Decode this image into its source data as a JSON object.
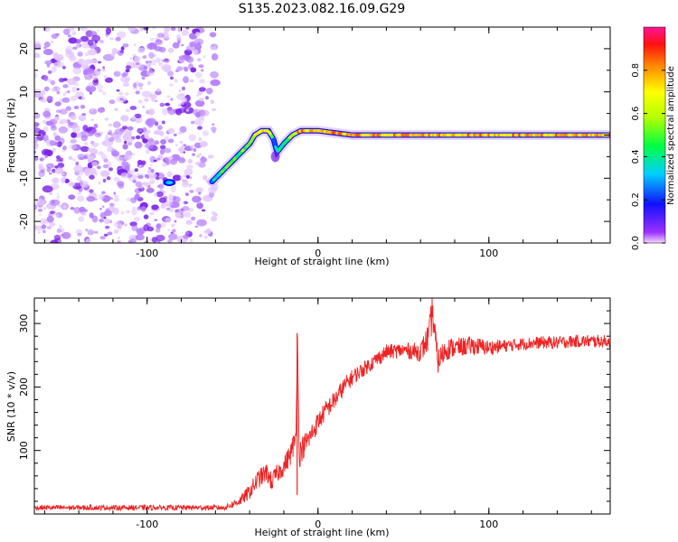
{
  "figure": {
    "title": "S135.2023.082.16.09.G29"
  },
  "colors": {
    "snr_line": "#ee2222",
    "scatter_purple": "#8a2be2",
    "background": "#ffffff"
  },
  "chart_data": [
    {
      "type": "heatmap",
      "title": "S135.2023.082.16.09.G29",
      "xlabel": "Height of straight line (km)",
      "ylabel": "Frequency (Hz)",
      "xlim": [
        -166,
        171
      ],
      "ylim": [
        -25,
        25
      ],
      "x_ticks": [
        -100,
        0,
        100
      ],
      "x_tick_labels": [
        "-100",
        "0",
        "100"
      ],
      "y_ticks": [
        -20,
        -10,
        0,
        10,
        20
      ],
      "y_tick_labels": [
        "-20",
        "-10",
        "0",
        "10",
        "20"
      ],
      "grid": false,
      "colorbar": {
        "label": "Normalized spectral amplitude",
        "range": [
          0,
          1
        ],
        "ticks": [
          0.0,
          0.2,
          0.4,
          0.6,
          0.8
        ],
        "tick_labels": [
          "0.0",
          "0.2",
          "0.4",
          "0.6",
          "0.8"
        ],
        "colormap": "rainbow (purple-blue-cyan-green-yellow-orange-red-magenta)"
      },
      "noise_region": {
        "x_range": [
          -166,
          -60
        ],
        "y_range": [
          -25,
          25
        ],
        "amplitude": 0.1
      },
      "ridge": {
        "x": [
          -90,
          -85,
          -65,
          -60,
          -55,
          -50,
          -45,
          -40,
          -37,
          -33,
          -29,
          -26,
          -24,
          -20,
          -15,
          -10,
          0,
          20,
          60,
          100,
          140,
          171
        ],
        "y": [
          -11,
          -11,
          -12,
          -10,
          -8,
          -6,
          -4,
          -2,
          0,
          1,
          1,
          -1,
          -4,
          -2,
          0,
          1,
          1,
          0,
          0,
          0,
          0,
          0
        ],
        "amplitude": [
          0.2,
          0.2,
          0.3,
          0.4,
          0.5,
          0.5,
          0.6,
          0.6,
          0.8,
          0.8,
          0.7,
          0.4,
          0.3,
          0.5,
          0.8,
          0.9,
          0.9,
          0.9,
          0.9,
          0.9,
          0.9,
          0.9
        ]
      }
    },
    {
      "type": "line",
      "xlabel": "Height of straight line (km)",
      "ylabel": "SNR (10 * v/v)",
      "xlim": [
        -166,
        171
      ],
      "ylim": [
        0,
        340
      ],
      "x_ticks": [
        -100,
        0,
        100
      ],
      "x_tick_labels": [
        "-100",
        "0",
        "100"
      ],
      "y_ticks": [
        100,
        200,
        300
      ],
      "y_tick_labels": [
        "100",
        "200",
        "300"
      ],
      "grid": false,
      "series": [
        {
          "color": "#ee2222",
          "x": [
            -166,
            -150,
            -130,
            -110,
            -90,
            -70,
            -55,
            -50,
            -45,
            -40,
            -35,
            -30,
            -27,
            -25,
            -20,
            -16,
            -13,
            -12,
            -11,
            -10,
            -5,
            0,
            5,
            10,
            15,
            20,
            25,
            30,
            35,
            40,
            50,
            60,
            65,
            67,
            70,
            75,
            80,
            90,
            100,
            110,
            120,
            130,
            140,
            150,
            160,
            171
          ],
          "y": [
            10,
            10,
            10,
            10,
            10,
            10,
            10,
            15,
            22,
            35,
            55,
            65,
            50,
            60,
            75,
            95,
            120,
            280,
            90,
            100,
            120,
            145,
            165,
            180,
            200,
            215,
            225,
            235,
            245,
            255,
            258,
            255,
            280,
            320,
            240,
            260,
            262,
            265,
            262,
            265,
            268,
            270,
            270,
            272,
            272,
            272
          ],
          "noise": [
            4,
            4,
            4,
            4,
            4,
            4,
            4,
            6,
            8,
            12,
            15,
            15,
            15,
            15,
            15,
            18,
            20,
            0,
            20,
            20,
            18,
            16,
            15,
            15,
            14,
            13,
            12,
            12,
            12,
            12,
            12,
            15,
            25,
            30,
            20,
            18,
            15,
            15,
            12,
            10,
            10,
            10,
            10,
            10,
            10,
            10
          ]
        }
      ]
    }
  ]
}
